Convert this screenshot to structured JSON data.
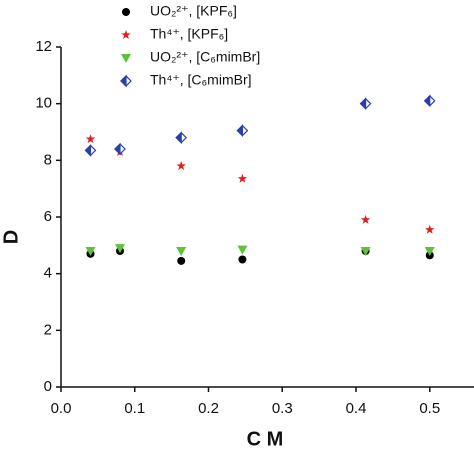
{
  "chart_data": {
    "type": "scatter",
    "x_label": "C M",
    "y_label": "D",
    "x": [
      0.04,
      0.08,
      0.163,
      0.246,
      0.413,
      0.5
    ],
    "series": [
      {
        "name": "UO₂²⁺, [KPF₆]",
        "color": "#000000",
        "marker": "circle",
        "values": [
          4.7,
          4.8,
          4.45,
          4.5,
          4.8,
          4.65
        ]
      },
      {
        "name": "Th⁴⁺, [KPF₆]",
        "color": "#e0201b",
        "marker": "star",
        "values": [
          8.75,
          8.3,
          7.8,
          7.35,
          5.9,
          5.55
        ]
      },
      {
        "name": "UO₂²⁺, [C₆mimBr]",
        "color": "#5cc23a",
        "marker": "triangle-down",
        "values": [
          4.8,
          4.9,
          4.8,
          4.85,
          4.8,
          4.8
        ]
      },
      {
        "name": "Th⁴⁺, [C₆mimBr]",
        "color": "#2b3fa8",
        "marker": "half-diamond",
        "values": [
          8.35,
          8.4,
          8.8,
          9.05,
          10.0,
          10.1
        ]
      }
    ],
    "xlim": [
      0,
      0.56
    ],
    "ylim": [
      0,
      12
    ],
    "xticks": [
      {
        "value": 0,
        "label": "0.0"
      },
      0.1,
      0.2,
      0.3,
      0.4,
      0.5
    ],
    "yticks": [
      0,
      2,
      4,
      6,
      8,
      10,
      12
    ]
  }
}
